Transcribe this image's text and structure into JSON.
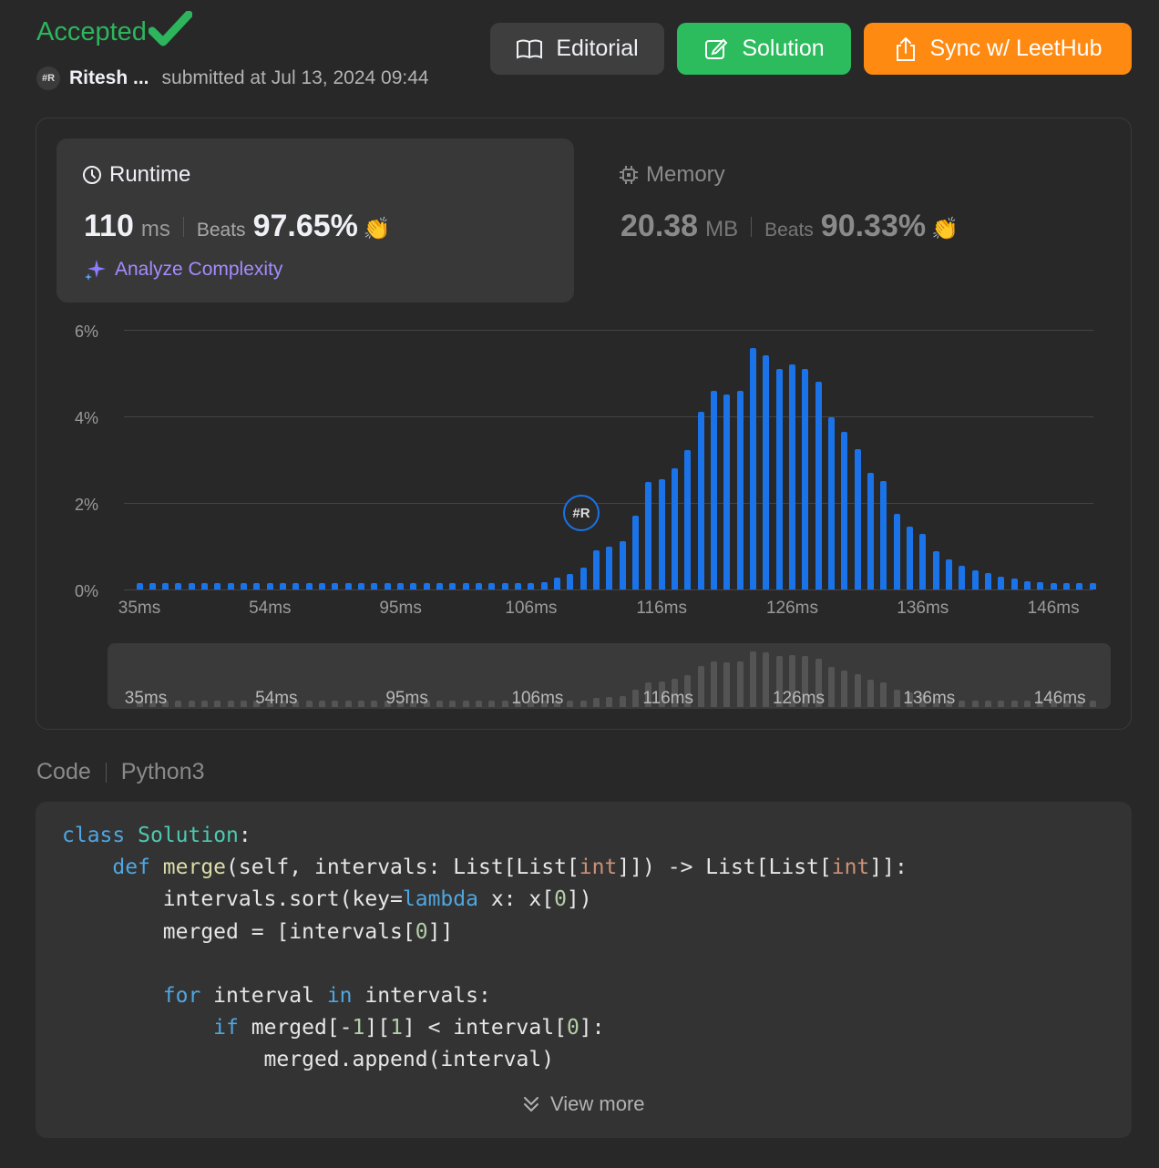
{
  "header": {
    "status": "Accepted",
    "user_name": "Ritesh ...",
    "avatar_text": "#R",
    "submitted_text": "submitted at Jul 13, 2024 09:44",
    "buttons": {
      "editorial": "Editorial",
      "solution": "Solution",
      "sync": "Sync w/ LeetHub"
    }
  },
  "colors": {
    "accepted": "#2db55d",
    "solution_btn": "#2cbb5d",
    "sync_btn": "#ff8a12",
    "bar": "#1a73e8",
    "analyze": "#a48cff"
  },
  "runtime": {
    "title": "Runtime",
    "value": "110",
    "unit": "ms",
    "beats_label": "Beats",
    "beats": "97.65%",
    "analyze_label": "Analyze Complexity"
  },
  "memory": {
    "title": "Memory",
    "value": "20.38",
    "unit": "MB",
    "beats_label": "Beats",
    "beats": "90.33%"
  },
  "chart_data": {
    "type": "bar",
    "title": "",
    "xlabel": "",
    "ylabel": "",
    "ylim": [
      0,
      6
    ],
    "y_ticks": [
      "6%",
      "4%",
      "2%",
      "0%"
    ],
    "x_tick_labels": [
      "35ms",
      "54ms",
      "95ms",
      "106ms",
      "116ms",
      "126ms",
      "136ms",
      "146ms"
    ],
    "x_tick_bar_index": [
      0,
      10,
      20,
      30,
      40,
      50,
      60,
      70
    ],
    "user_bar_index": 34,
    "values": [
      0.15,
      0.15,
      0.15,
      0.15,
      0.15,
      0.15,
      0.15,
      0.15,
      0.15,
      0.15,
      0.15,
      0.15,
      0.15,
      0.15,
      0.15,
      0.15,
      0.15,
      0.15,
      0.15,
      0.15,
      0.15,
      0.15,
      0.15,
      0.15,
      0.15,
      0.15,
      0.15,
      0.15,
      0.15,
      0.15,
      0.15,
      0.17,
      0.27,
      0.35,
      0.5,
      0.9,
      1.0,
      1.12,
      1.7,
      2.48,
      2.55,
      2.8,
      3.22,
      4.1,
      4.58,
      4.5,
      4.58,
      5.58,
      5.42,
      5.1,
      5.2,
      5.1,
      4.8,
      3.98,
      3.65,
      3.25,
      2.7,
      2.5,
      1.75,
      1.45,
      1.28,
      0.88,
      0.7,
      0.55,
      0.45,
      0.38,
      0.3,
      0.25,
      0.2,
      0.17,
      0.15,
      0.15,
      0.15,
      0.15
    ]
  },
  "code": {
    "label": "Code",
    "language": "Python3",
    "lines": [
      "class Solution:",
      "    def merge(self, intervals: List[List[int]]) -> List[List[int]]:",
      "        intervals.sort(key=lambda x: x[0])",
      "        merged = [intervals[0]]",
      "",
      "        for interval in intervals:",
      "            if merged[-1][1] < interval[0]:",
      "                merged.append(interval)"
    ],
    "view_more": "View more"
  }
}
